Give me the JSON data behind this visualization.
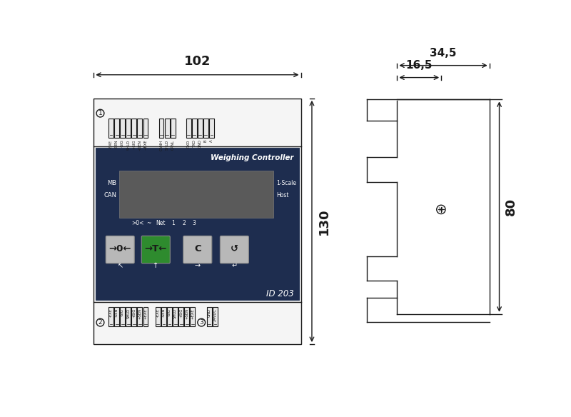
{
  "bg_color": "#ffffff",
  "line_color": "#1a1a1a",
  "device_color": "#1e2d4f",
  "screen_color": "#5a5a5a",
  "btn_gray_color": "#b8b8b8",
  "btn_green_color": "#2e8b2e",
  "dim_102": "102",
  "dim_130": "130",
  "dim_345": "34,5",
  "dim_165": "16,5",
  "dim_80": "80",
  "label_weighing": "Weighing Controller",
  "label_mb": "MB",
  "label_can": "CAN",
  "label_1scale": "1-Scale",
  "label_host": "Host",
  "label_id": "ID 203",
  "label_indicators": [
    ">0<",
    "~",
    "Net",
    "1",
    "2",
    "3"
  ],
  "top_labels_group1": [
    "-EXE",
    "-SEN",
    "-SIG",
    "SHLD",
    "+SIG",
    "+SEN",
    "+EXE"
  ],
  "top_labels_group2": [
    "CANH",
    "SHLD",
    "CANL"
  ],
  "top_labels_group3": [
    "RXD",
    "TXD",
    "GND",
    "B",
    "A"
  ],
  "bot_labels_group1": [
    "-EXE",
    "-SEN",
    "-SIG",
    "SHLD",
    "+SIG",
    "+SEN",
    "+EXE"
  ],
  "bot_labels_group2": [
    "-EXE",
    "-SEN",
    "-SIG",
    "SHLD",
    "+SIG",
    "+SEN",
    "+EXE"
  ],
  "bot_labels_group3": [
    "GND",
    "24VDC"
  ],
  "circle1": "1",
  "circle2": "2",
  "circle3": "3"
}
